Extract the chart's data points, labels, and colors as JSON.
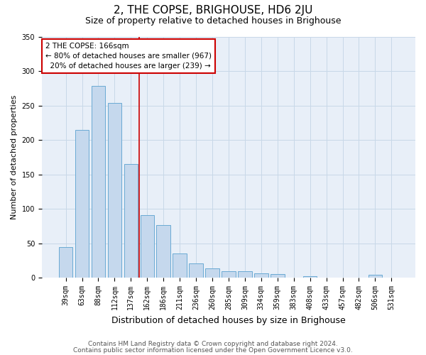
{
  "title": "2, THE COPSE, BRIGHOUSE, HD6 2JU",
  "subtitle": "Size of property relative to detached houses in Brighouse",
  "xlabel": "Distribution of detached houses by size in Brighouse",
  "ylabel": "Number of detached properties",
  "categories": [
    "39sqm",
    "63sqm",
    "88sqm",
    "112sqm",
    "137sqm",
    "162sqm",
    "186sqm",
    "211sqm",
    "236sqm",
    "260sqm",
    "285sqm",
    "309sqm",
    "334sqm",
    "359sqm",
    "383sqm",
    "408sqm",
    "433sqm",
    "457sqm",
    "482sqm",
    "506sqm",
    "531sqm"
  ],
  "values": [
    44,
    214,
    278,
    254,
    165,
    91,
    76,
    35,
    21,
    14,
    9,
    9,
    6,
    5,
    0,
    2,
    0,
    0,
    0,
    4,
    0
  ],
  "bar_color": "#c5d8ed",
  "bar_edge_color": "#6aaad4",
  "grid_color": "#c8d8e8",
  "background_color": "#e8eff8",
  "marker_index": 5,
  "marker_label": "2 THE COPSE: 166sqm",
  "smaller_pct": "80%",
  "smaller_count": 967,
  "larger_pct": "20%",
  "larger_count": 239,
  "annotation_box_color": "#cc0000",
  "vline_color": "#cc0000",
  "ylim": [
    0,
    350
  ],
  "yticks": [
    0,
    50,
    100,
    150,
    200,
    250,
    300,
    350
  ],
  "footer1": "Contains HM Land Registry data © Crown copyright and database right 2024.",
  "footer2": "Contains public sector information licensed under the Open Government Licence v3.0.",
  "title_fontsize": 11,
  "subtitle_fontsize": 9,
  "tick_fontsize": 7,
  "ylabel_fontsize": 8,
  "xlabel_fontsize": 9,
  "footer_fontsize": 6.5,
  "ann_fontsize": 7.5
}
